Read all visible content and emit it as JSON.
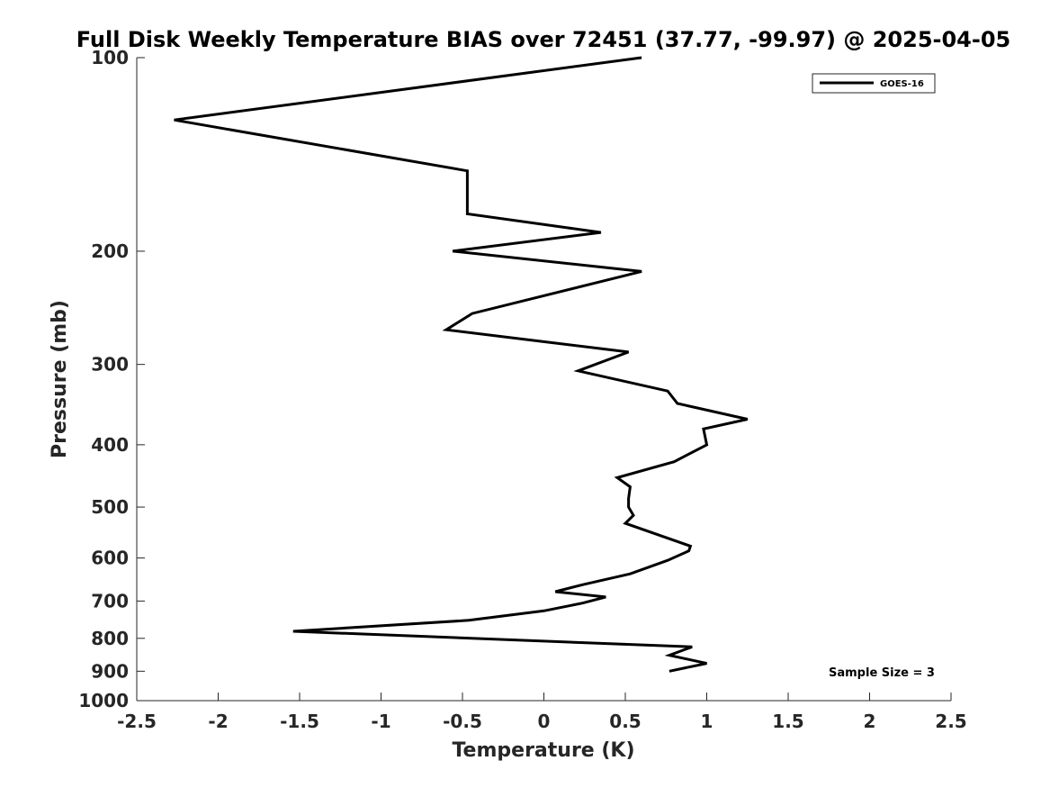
{
  "chart_data": {
    "type": "line",
    "title": "Full Disk Weekly Temperature BIAS over 72451 (37.77, -99.97) @ 2025-04-05",
    "xlabel": "Temperature (K)",
    "ylabel": "Pressure (mb)",
    "xlim": [
      -2.5,
      2.5
    ],
    "ylim": [
      100,
      1000
    ],
    "y_scale": "log",
    "y_reversed": true,
    "x_ticks": [
      "-2.5",
      "-2",
      "-1.5",
      "-1",
      "-0.5",
      "0",
      "0.5",
      "1",
      "1.5",
      "2",
      "2.5"
    ],
    "y_ticks": [
      "100",
      "200",
      "300",
      "400",
      "500",
      "600",
      "700",
      "800",
      "900",
      "1000"
    ],
    "grid": false,
    "legend_position": "top-right",
    "series": [
      {
        "name": "GOES-16",
        "color": "#000000",
        "x": [
          0.6,
          -2.27,
          -0.47,
          -0.47,
          0.35,
          -0.56,
          0.6,
          -0.44,
          -0.6,
          0.52,
          0.21,
          0.76,
          0.82,
          1.25,
          0.98,
          1.0,
          0.8,
          0.45,
          0.53,
          0.52,
          0.52,
          0.55,
          0.5,
          0.9,
          0.89,
          0.76,
          0.53,
          0.24,
          0.07,
          0.38,
          0.24,
          0.0,
          -0.46,
          -1.54,
          0.91,
          0.77,
          1.0,
          0.77
        ],
        "y": [
          100,
          125,
          150,
          175,
          187,
          200,
          215,
          250,
          265,
          287,
          307,
          330,
          345,
          365,
          378,
          400,
          425,
          450,
          465,
          485,
          500,
          515,
          530,
          575,
          585,
          605,
          635,
          660,
          677,
          690,
          705,
          725,
          750,
          780,
          825,
          850,
          875,
          900
        ]
      }
    ],
    "legend": [
      "GOES-16"
    ],
    "annotation": "Sample Size = 3"
  }
}
